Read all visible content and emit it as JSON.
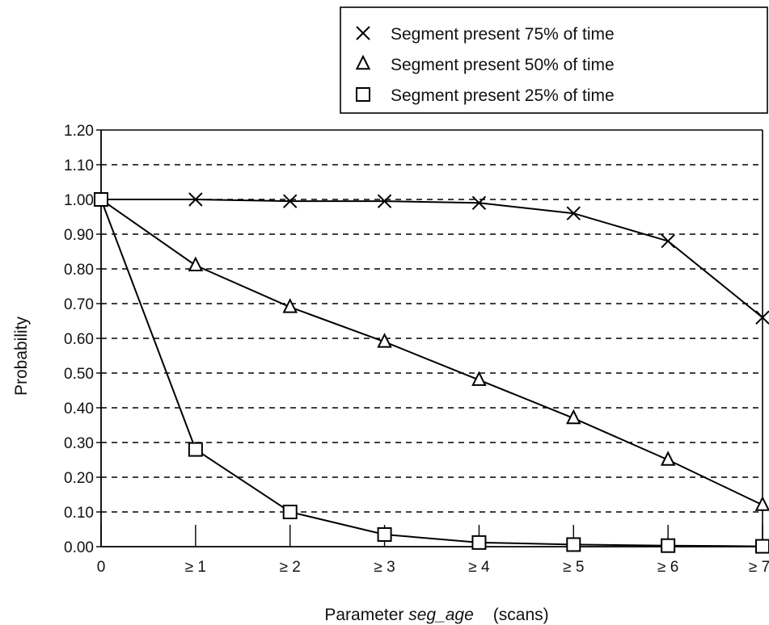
{
  "chart_data": {
    "type": "line",
    "xlabel_prefix": "Parameter ",
    "xlabel_param": "seg_age",
    "xlabel_suffix": "(scans)",
    "ylabel": "Probability",
    "categories": [
      "0",
      "≥ 1",
      "≥ 2",
      "≥ 3",
      "≥ 4",
      "≥ 5",
      "≥ 6",
      "≥ 7"
    ],
    "y_ticks": [
      "0.00",
      "0.10",
      "0.20",
      "0.30",
      "0.40",
      "0.50",
      "0.60",
      "0.70",
      "0.80",
      "0.90",
      "1.00",
      "1.10",
      "1.20"
    ],
    "ylim": [
      0,
      1.2
    ],
    "grid": "dashed horizontal",
    "legend_position": "top-right",
    "series": [
      {
        "name": "Segment present 75% of  time",
        "marker": "x",
        "values": [
          1.0,
          1.0,
          0.995,
          0.995,
          0.99,
          0.96,
          0.88,
          0.66
        ]
      },
      {
        "name": "Segment present 50% of time",
        "marker": "triangle",
        "values": [
          1.0,
          0.81,
          0.69,
          0.59,
          0.48,
          0.37,
          0.25,
          0.12
        ]
      },
      {
        "name": "Segment present 25% of time",
        "marker": "square",
        "values": [
          1.0,
          0.28,
          0.1,
          0.035,
          0.012,
          0.006,
          0.003,
          0.001
        ]
      }
    ]
  }
}
